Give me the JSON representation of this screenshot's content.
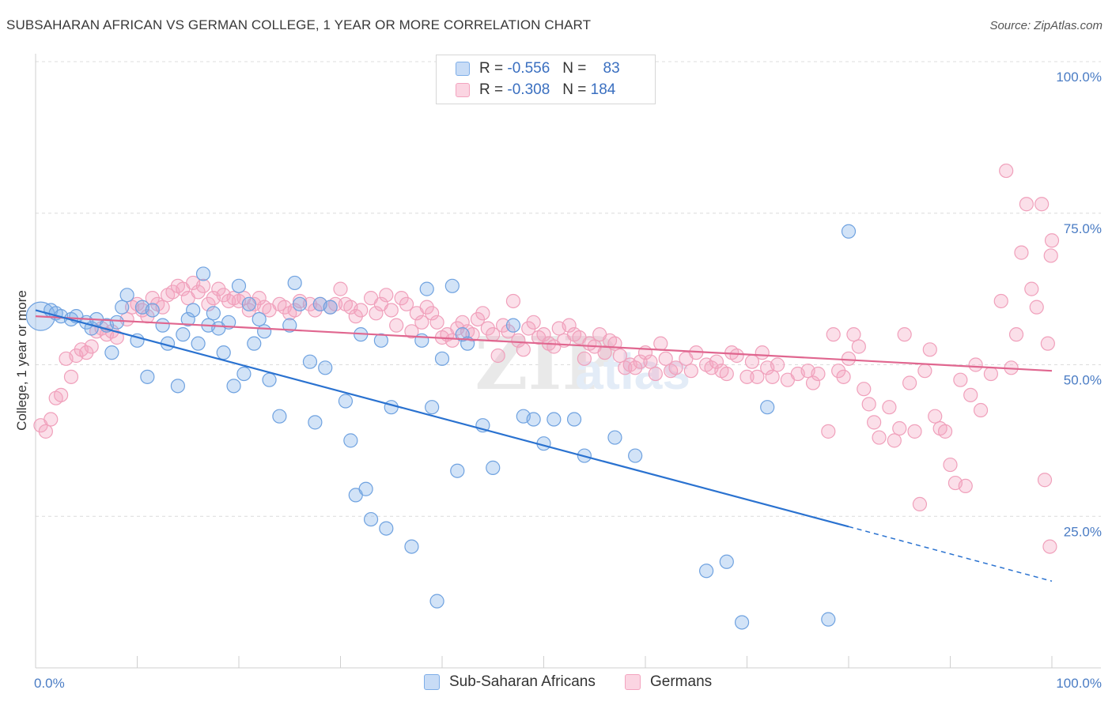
{
  "title": "SUBSAHARAN AFRICAN VS GERMAN COLLEGE, 1 YEAR OR MORE CORRELATION CHART",
  "source": "Source: ZipAtlas.com",
  "legend": {
    "rows": [
      {
        "r_label": "R =",
        "r_value": "-0.556",
        "n_label": "N =",
        "n_value": "83"
      },
      {
        "r_label": "R =",
        "r_value": "-0.308",
        "n_label": "N =",
        "n_value": "184"
      }
    ]
  },
  "chart_data": {
    "type": "scatter",
    "title": "SUBSAHARAN AFRICAN VS GERMAN COLLEGE, 1 YEAR OR MORE CORRELATION CHART",
    "xlabel": "",
    "ylabel": "College, 1 year or more",
    "xlim": [
      0,
      100
    ],
    "ylim": [
      0,
      100
    ],
    "x_tick_labels": [
      "0.0%",
      "100.0%"
    ],
    "y_tick_labels": [
      "25.0%",
      "50.0%",
      "75.0%",
      "100.0%"
    ],
    "y_ticks": [
      25,
      50,
      75,
      100
    ],
    "grid": true,
    "legend_position": "top-center",
    "colors": {
      "blue": "#7eaee8",
      "blue_line": "#2a72d0",
      "pink": "#f3a4bf",
      "pink_line": "#e0668f"
    },
    "series": [
      {
        "name": "Sub-Saharan Africans",
        "color": "#7eaee8",
        "trend": {
          "x0": 0,
          "y0": 59,
          "x1": 80,
          "y1": 23.3,
          "dash_to_x": 100,
          "dash_to_y": 14.3
        },
        "points": [
          [
            0.5,
            58
          ],
          [
            1.5,
            59
          ],
          [
            2,
            58.5
          ],
          [
            2.5,
            58
          ],
          [
            3.5,
            57.5
          ],
          [
            4,
            58
          ],
          [
            5,
            57
          ],
          [
            5.5,
            56
          ],
          [
            6,
            57.5
          ],
          [
            7,
            56.5
          ],
          [
            7.5,
            52
          ],
          [
            8,
            57
          ],
          [
            9,
            61.5
          ],
          [
            8.5,
            59.5
          ],
          [
            10,
            54
          ],
          [
            10.5,
            59.5
          ],
          [
            11,
            48
          ],
          [
            11.5,
            59
          ],
          [
            12.5,
            56.5
          ],
          [
            13,
            53.5
          ],
          [
            14,
            46.5
          ],
          [
            14.5,
            55
          ],
          [
            15,
            57.5
          ],
          [
            15.5,
            59
          ],
          [
            16,
            53.5
          ],
          [
            16.5,
            65
          ],
          [
            17,
            56.5
          ],
          [
            17.5,
            58.5
          ],
          [
            18,
            56
          ],
          [
            18.5,
            52
          ],
          [
            19,
            57
          ],
          [
            19.5,
            46.5
          ],
          [
            20,
            63
          ],
          [
            20.5,
            48.5
          ],
          [
            21,
            60
          ],
          [
            21.5,
            53.5
          ],
          [
            22,
            57.5
          ],
          [
            22.5,
            55.5
          ],
          [
            23,
            47.5
          ],
          [
            24,
            41.5
          ],
          [
            25,
            56.5
          ],
          [
            25.5,
            63.5
          ],
          [
            26,
            60
          ],
          [
            27,
            50.5
          ],
          [
            27.5,
            40.5
          ],
          [
            28,
            60
          ],
          [
            28.5,
            49.5
          ],
          [
            29,
            59.5
          ],
          [
            30.5,
            44
          ],
          [
            31,
            37.5
          ],
          [
            31.5,
            28.5
          ],
          [
            32,
            55
          ],
          [
            32.5,
            29.5
          ],
          [
            33,
            24.5
          ],
          [
            34,
            54
          ],
          [
            34.5,
            23
          ],
          [
            35,
            43
          ],
          [
            37,
            20
          ],
          [
            38,
            54
          ],
          [
            38.5,
            62.5
          ],
          [
            39,
            43
          ],
          [
            39.5,
            11
          ],
          [
            40,
            51
          ],
          [
            41,
            63
          ],
          [
            41.5,
            32.5
          ],
          [
            42,
            55
          ],
          [
            42.5,
            53.5
          ],
          [
            44,
            40
          ],
          [
            45,
            33
          ],
          [
            47,
            56.5
          ],
          [
            48,
            41.5
          ],
          [
            49,
            41
          ],
          [
            50,
            37
          ],
          [
            51,
            41
          ],
          [
            53,
            41
          ],
          [
            54,
            35
          ],
          [
            57,
            38
          ],
          [
            59,
            35
          ],
          [
            66,
            16
          ],
          [
            68,
            17.5
          ],
          [
            69.5,
            7.5
          ],
          [
            72,
            43
          ],
          [
            78,
            8
          ],
          [
            80,
            72
          ]
        ]
      },
      {
        "name": "Germans",
        "color": "#f3a4bf",
        "trend": {
          "x0": 0,
          "y0": 58,
          "x1": 100,
          "y1": 49
        },
        "points": [
          [
            0.5,
            40
          ],
          [
            1,
            39
          ],
          [
            1.5,
            41
          ],
          [
            2,
            44.5
          ],
          [
            2.5,
            45
          ],
          [
            3,
            51
          ],
          [
            3.5,
            48
          ],
          [
            4,
            51.5
          ],
          [
            4.5,
            52.5
          ],
          [
            5,
            52
          ],
          [
            5.5,
            53
          ],
          [
            6,
            55.5
          ],
          [
            6.5,
            56
          ],
          [
            7,
            55
          ],
          [
            7.5,
            55.5
          ],
          [
            8,
            54.5
          ],
          [
            9,
            57.5
          ],
          [
            9.5,
            59.5
          ],
          [
            10,
            60
          ],
          [
            10.5,
            59
          ],
          [
            11,
            58
          ],
          [
            11.5,
            61
          ],
          [
            12,
            60
          ],
          [
            12.5,
            59.5
          ],
          [
            13,
            61.5
          ],
          [
            13.5,
            62
          ],
          [
            14,
            63
          ],
          [
            14.5,
            62.5
          ],
          [
            15,
            61
          ],
          [
            15.5,
            63.5
          ],
          [
            16,
            62
          ],
          [
            16.5,
            63
          ],
          [
            17,
            60
          ],
          [
            17.5,
            61
          ],
          [
            18,
            62.5
          ],
          [
            18.5,
            61.5
          ],
          [
            19,
            60.5
          ],
          [
            19.5,
            61
          ],
          [
            20,
            60.5
          ],
          [
            20.5,
            61
          ],
          [
            21,
            59
          ],
          [
            21.5,
            60
          ],
          [
            22,
            61
          ],
          [
            22.5,
            59.5
          ],
          [
            23,
            59
          ],
          [
            24,
            60
          ],
          [
            24.5,
            59.5
          ],
          [
            25,
            58.5
          ],
          [
            25.5,
            59
          ],
          [
            26,
            60.5
          ],
          [
            27,
            60
          ],
          [
            27.5,
            59
          ],
          [
            28,
            60
          ],
          [
            29,
            59.5
          ],
          [
            29.5,
            60
          ],
          [
            30,
            62.5
          ],
          [
            30.5,
            60
          ],
          [
            31,
            59.5
          ],
          [
            31.5,
            58
          ],
          [
            32,
            59
          ],
          [
            33,
            61
          ],
          [
            33.5,
            58.5
          ],
          [
            34,
            60
          ],
          [
            34.5,
            61.5
          ],
          [
            35,
            59
          ],
          [
            35.5,
            56.5
          ],
          [
            36,
            61
          ],
          [
            36.5,
            60
          ],
          [
            37,
            55.5
          ],
          [
            37.5,
            58.5
          ],
          [
            38,
            57
          ],
          [
            38.5,
            59.5
          ],
          [
            39,
            58.5
          ],
          [
            39.5,
            57
          ],
          [
            40,
            54.5
          ],
          [
            40.5,
            55
          ],
          [
            41,
            54
          ],
          [
            41.5,
            56
          ],
          [
            42,
            57
          ],
          [
            42.5,
            55.5
          ],
          [
            43,
            55
          ],
          [
            43.5,
            57.5
          ],
          [
            44,
            58.5
          ],
          [
            44.5,
            56
          ],
          [
            45,
            55
          ],
          [
            45.5,
            51.5
          ],
          [
            46,
            56.5
          ],
          [
            46.5,
            55.5
          ],
          [
            47,
            60.5
          ],
          [
            47.5,
            54
          ],
          [
            48,
            52.5
          ],
          [
            48.5,
            56
          ],
          [
            49,
            57
          ],
          [
            49.5,
            54.5
          ],
          [
            50,
            55
          ],
          [
            50.5,
            53.5
          ],
          [
            51,
            53
          ],
          [
            51.5,
            56
          ],
          [
            52,
            54
          ],
          [
            52.5,
            56.5
          ],
          [
            53,
            55
          ],
          [
            53.5,
            54.5
          ],
          [
            54,
            51
          ],
          [
            54.5,
            53.5
          ],
          [
            55,
            53
          ],
          [
            55.5,
            55
          ],
          [
            56,
            52
          ],
          [
            56.5,
            54
          ],
          [
            57,
            53.5
          ],
          [
            57.5,
            51.5
          ],
          [
            58,
            49.5
          ],
          [
            58.5,
            50
          ],
          [
            59,
            49.5
          ],
          [
            59.5,
            50.5
          ],
          [
            60,
            52
          ],
          [
            60.5,
            50.5
          ],
          [
            61,
            48.5
          ],
          [
            61.5,
            53.5
          ],
          [
            62,
            51
          ],
          [
            62.5,
            49
          ],
          [
            63,
            49.5
          ],
          [
            64,
            51
          ],
          [
            64.5,
            49
          ],
          [
            65,
            52
          ],
          [
            66,
            50
          ],
          [
            66.5,
            49.5
          ],
          [
            67,
            50.5
          ],
          [
            67.5,
            49
          ],
          [
            68,
            48.5
          ],
          [
            68.5,
            52
          ],
          [
            69,
            51.5
          ],
          [
            70,
            48
          ],
          [
            70.5,
            50.5
          ],
          [
            71,
            48
          ],
          [
            71.5,
            52
          ],
          [
            72,
            49.5
          ],
          [
            72.5,
            48
          ],
          [
            73,
            50
          ],
          [
            74,
            47.5
          ],
          [
            75,
            48.5
          ],
          [
            76,
            49
          ],
          [
            76.5,
            47
          ],
          [
            77,
            48.5
          ],
          [
            78,
            39
          ],
          [
            78.5,
            55
          ],
          [
            79,
            49
          ],
          [
            79.5,
            48
          ],
          [
            80,
            51
          ],
          [
            80.5,
            55
          ],
          [
            81,
            53
          ],
          [
            81.5,
            46
          ],
          [
            82,
            43.5
          ],
          [
            82.5,
            40.5
          ],
          [
            83,
            38
          ],
          [
            84,
            43
          ],
          [
            84.5,
            37.5
          ],
          [
            85,
            39.5
          ],
          [
            85.5,
            55
          ],
          [
            86,
            47
          ],
          [
            86.5,
            39
          ],
          [
            87,
            27
          ],
          [
            87.5,
            49
          ],
          [
            88,
            52.5
          ],
          [
            88.5,
            41.5
          ],
          [
            89,
            39.5
          ],
          [
            89.5,
            39
          ],
          [
            90,
            33.5
          ],
          [
            90.5,
            30.5
          ],
          [
            91,
            47.5
          ],
          [
            91.5,
            30
          ],
          [
            92,
            45
          ],
          [
            92.5,
            50
          ],
          [
            93,
            42.5
          ],
          [
            94,
            48.5
          ],
          [
            95,
            60.5
          ],
          [
            95.5,
            82
          ],
          [
            96,
            49.5
          ],
          [
            96.5,
            55
          ],
          [
            97,
            68.5
          ],
          [
            97.5,
            76.5
          ],
          [
            98,
            62.5
          ],
          [
            98.5,
            59.5
          ],
          [
            99,
            76.5
          ],
          [
            99.3,
            31
          ],
          [
            99.6,
            53.5
          ],
          [
            99.8,
            20
          ],
          [
            99.9,
            68
          ],
          [
            100,
            70.5
          ]
        ]
      }
    ]
  },
  "bottom_legend": [
    "Sub-Saharan Africans",
    "Germans"
  ]
}
